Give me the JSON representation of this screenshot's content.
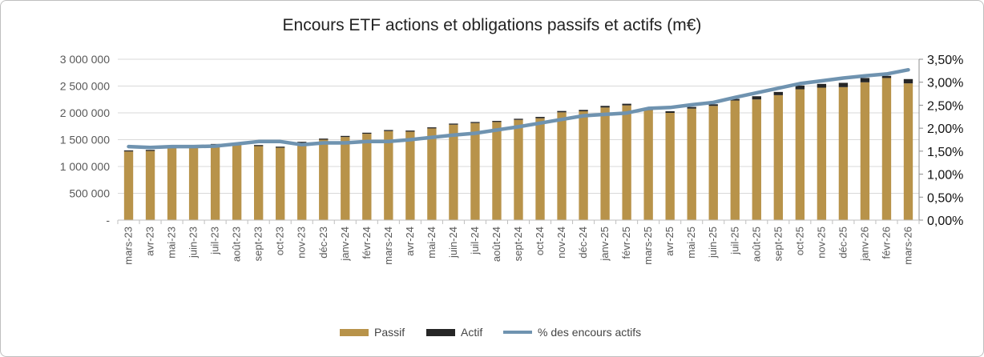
{
  "chart_data": {
    "type": "bar",
    "stacked": true,
    "title": "Encours ETF actions et obligations passifs et actifs (m€)",
    "categories": [
      "mars-23",
      "avr-23",
      "mai-23",
      "juin-23",
      "juil-23",
      "août-23",
      "sept-23",
      "oct-23",
      "nov-23",
      "déc-23",
      "janv-24",
      "févr-24",
      "mars-24",
      "avr-24",
      "mai-24",
      "juin-24",
      "juil-24",
      "août-24",
      "sept-24",
      "oct-24",
      "nov-24",
      "déc-24",
      "janv-25",
      "févr-25",
      "mars-25",
      "avr-25",
      "mai-25",
      "juin-25",
      "juil-25",
      "août-25",
      "sept-25",
      "oct-25",
      "nov-25",
      "déc-25",
      "janv-26",
      "févr-26",
      "mars-26"
    ],
    "series": [
      {
        "name": "Passif",
        "color": "#b8934a",
        "axis": "left",
        "values": [
          1280000,
          1290000,
          1350000,
          1360000,
          1400000,
          1410000,
          1380000,
          1350000,
          1440000,
          1500000,
          1550000,
          1610000,
          1660000,
          1650000,
          1710000,
          1780000,
          1810000,
          1830000,
          1870000,
          1900000,
          2010000,
          2030000,
          2100000,
          2140000,
          2050000,
          2000000,
          2080000,
          2130000,
          2230000,
          2250000,
          2330000,
          2440000,
          2470000,
          2480000,
          2570000,
          2650000,
          2550000
        ]
      },
      {
        "name": "Actif",
        "color": "#262626",
        "axis": "left",
        "values": [
          20000,
          20000,
          20000,
          20000,
          20000,
          20000,
          20000,
          20000,
          20000,
          20000,
          20000,
          20000,
          20000,
          20000,
          20000,
          20000,
          20000,
          20000,
          20000,
          25000,
          25000,
          25000,
          30000,
          30000,
          30000,
          30000,
          30000,
          30000,
          30000,
          60000,
          60000,
          70000,
          70000,
          80000,
          80000,
          40000,
          80000
        ]
      },
      {
        "name": "% des encours actifs",
        "type": "line",
        "color": "#6f93b0",
        "axis": "right",
        "values": [
          1.6,
          1.58,
          1.6,
          1.6,
          1.61,
          1.66,
          1.71,
          1.71,
          1.64,
          1.68,
          1.68,
          1.71,
          1.71,
          1.75,
          1.8,
          1.85,
          1.89,
          1.96,
          2.03,
          2.11,
          2.19,
          2.27,
          2.3,
          2.33,
          2.43,
          2.45,
          2.51,
          2.56,
          2.67,
          2.77,
          2.87,
          2.97,
          3.03,
          3.09,
          3.14,
          3.18,
          3.27
        ]
      }
    ],
    "ylim": [
      0,
      3000000
    ],
    "y_ticks": [
      0,
      500000,
      1000000,
      1500000,
      2000000,
      2500000,
      3000000
    ],
    "y_tick_labels": [
      "-",
      "500 000",
      "1 000 000",
      "1 500 000",
      "2 000 000",
      "2 500 000",
      "3 000 000"
    ],
    "y2lim": [
      0,
      3.5
    ],
    "y2_ticks": [
      0,
      0.5,
      1,
      1.5,
      2,
      2.5,
      3,
      3.5
    ],
    "y2_tick_labels": [
      "0,00%",
      "0,50%",
      "1,00%",
      "1,50%",
      "2,00%",
      "2,50%",
      "3,00%",
      "3,50%"
    ],
    "xlabel": "",
    "ylabel": "",
    "legend_position": "bottom-center",
    "legend_labels": [
      "Passif",
      "Actif",
      "% des encours actifs"
    ]
  }
}
